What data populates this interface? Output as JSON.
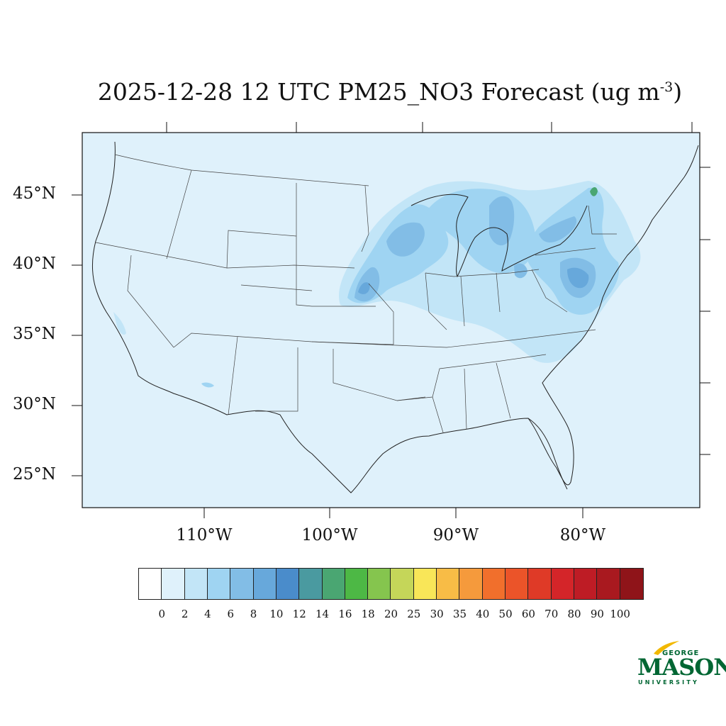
{
  "title": {
    "main": "2025-12-28 12 UTC PM25_NO3 Forecast (ug m",
    "exponent": "-3",
    "close": ")"
  },
  "lat_labels": [
    "45°N",
    "40°N",
    "35°N",
    "30°N",
    "25°N"
  ],
  "lon_labels": [
    "110°W",
    "100°W",
    "90°W",
    "80°W"
  ],
  "colorbar": {
    "labels": [
      "0",
      "2",
      "4",
      "6",
      "8",
      "10",
      "12",
      "14",
      "16",
      "18",
      "20",
      "25",
      "30",
      "35",
      "40",
      "50",
      "60",
      "70",
      "80",
      "90",
      "100"
    ],
    "colors": [
      "#ffffff",
      "#dff1fb",
      "#c2e5f7",
      "#9fd4f2",
      "#82bde6",
      "#67a8db",
      "#4a8ccb",
      "#4a9aa0",
      "#4aa672",
      "#4db845",
      "#85c54e",
      "#c5d659",
      "#f9e658",
      "#f8bc46",
      "#f59a3c",
      "#f16f2c",
      "#eb5429",
      "#df3a27",
      "#d42529",
      "#be1c25",
      "#a9191f",
      "#8f1419"
    ]
  },
  "logo": {
    "george": "GEORGE",
    "mason": "MASON",
    "university": "UNIVERSITY"
  },
  "colors": {
    "background_field": "#dff1fb",
    "light_blue": "#c2e5f7",
    "mid_blue": "#9fd4f2",
    "blue": "#82bde6",
    "deep_blue": "#67a8db",
    "teal": "#4a9aa0",
    "green": "#4aa672"
  }
}
